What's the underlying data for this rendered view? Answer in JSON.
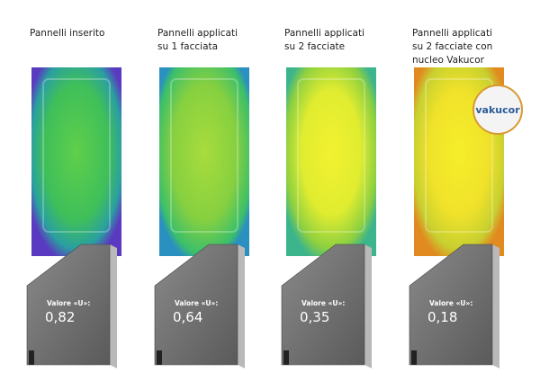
{
  "panels": [
    {
      "caption": [
        "Pannelli inserito"
      ],
      "label": "Valore «U»:",
      "value": "0,82"
    },
    {
      "caption": [
        "Pannelli applicati",
        "su 1 facciata"
      ],
      "label": "Valore «U»:",
      "value": "0,64"
    },
    {
      "caption": [
        "Pannelli applicati",
        "su 2 facciate"
      ],
      "label": "Valore «U»:",
      "value": "0,35"
    },
    {
      "caption": [
        "Pannelli applicati",
        "su 2 facciate con",
        "nucleo Vakucor"
      ],
      "label": "Valore «U»:",
      "value": "0,18"
    }
  ],
  "badge": {
    "label": "vakucor"
  }
}
